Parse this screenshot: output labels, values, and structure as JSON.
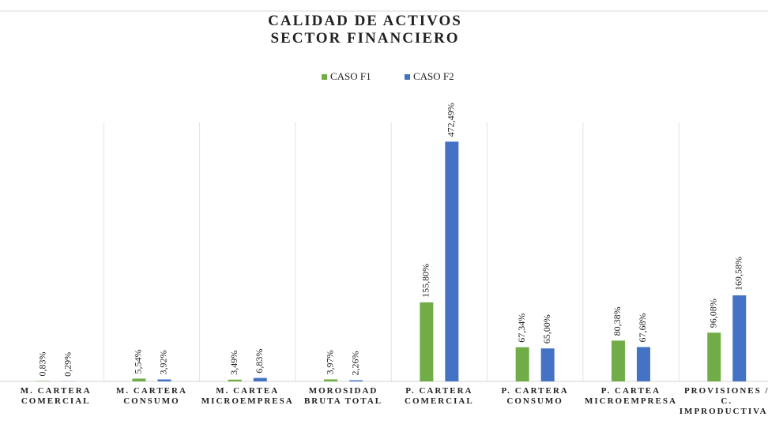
{
  "chart_data": {
    "type": "bar",
    "title": "CALIDAD DE ACTIVOS\nSECTOR FINANCIERO",
    "categories": [
      "M. CARTERA\nCOMERCIAL",
      "M. CARTERA\nCONSUMO",
      "M. CARTEA\nMICROEMPRESA",
      "MOROSIDAD\nBRUTA TOTAL",
      "P. CARTERA\nCOMERCIAL",
      "P. CARTERA\nCONSUMO",
      "P. CARTEA\nMICROEMPRESA",
      "PROVISIONES /\nC.\nIMPRODUCTIVAS"
    ],
    "series": [
      {
        "name": "CASO F1",
        "color": "#70ad47",
        "values": [
          0.83,
          5.54,
          3.49,
          3.97,
          155.8,
          67.34,
          80.38,
          96.08
        ],
        "value_labels": [
          "0,83%",
          "5,54%",
          "3,49%",
          "3,97%",
          "155,80%",
          "67,34%",
          "80,38%",
          "96,08%"
        ]
      },
      {
        "name": "CASO F2",
        "color": "#4472c4",
        "values": [
          0.29,
          3.92,
          6.83,
          2.26,
          472.49,
          65.0,
          67.68,
          169.58
        ],
        "value_labels": [
          "0,29%",
          "3,92%",
          "6,83%",
          "2,26%",
          "472,49%",
          "65,00%",
          "67,68%",
          "169,58%"
        ]
      }
    ],
    "ylim": [
      0,
      540
    ],
    "legend": "top"
  }
}
